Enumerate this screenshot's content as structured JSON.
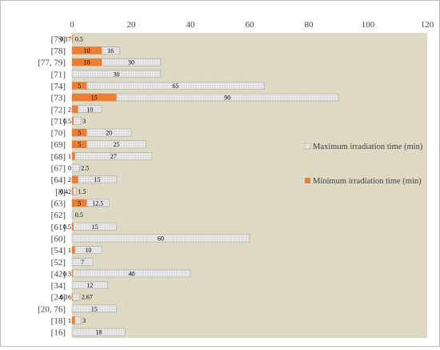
{
  "chart_data": {
    "type": "bar",
    "orientation": "horizontal",
    "stacked": "overlay",
    "categories": [
      "[79]",
      "[78]",
      "[77, 79]",
      "[71]",
      "[74]",
      "[73]",
      "[72]",
      "[71]",
      "[70]",
      "[69]",
      "[68]",
      "[67]",
      "[64]",
      "[8]",
      "[63]",
      "[62]",
      "[61]",
      "[60]",
      "[54]",
      "[52]",
      "[42]",
      "[34]",
      "[24]",
      "[20, 76]",
      "[18]",
      "[16]"
    ],
    "series": [
      {
        "name": "Maximum irradiation time (min)",
        "color": "#e7e6e6",
        "pattern": "dotted",
        "values": [
          0.5,
          16,
          30,
          30,
          65,
          90,
          10,
          3,
          20,
          25,
          27,
          2.5,
          15,
          1.5,
          12.5,
          0.5,
          15,
          60,
          10,
          7,
          40,
          12,
          2.67,
          15,
          3,
          18
        ],
        "labels": [
          "0.5",
          "16",
          "30",
          "30",
          "65",
          "90",
          "10",
          "3",
          "20",
          "25",
          "27",
          "2.5",
          "15",
          "1.5",
          "12.5",
          "0.5",
          "15",
          "60",
          "10",
          "7",
          "40",
          "12",
          "2.67",
          "15",
          "3",
          "18"
        ]
      },
      {
        "name": "Minimum irradiation time (min)",
        "color": "#ed7d31",
        "values": [
          0.17,
          10,
          10,
          null,
          5,
          15,
          2,
          0.5,
          5,
          5,
          1,
          0,
          2,
          0.42,
          5,
          0,
          0.5,
          null,
          1,
          null,
          0.3,
          null,
          0.16,
          null,
          1,
          null
        ],
        "labels": [
          "0.17",
          "10",
          "10",
          "",
          "5",
          "15",
          "2",
          "0.5",
          "5",
          "5",
          "1",
          "0",
          "2",
          "0.42",
          "5",
          "",
          "0.5",
          "",
          "1",
          "",
          "0.3",
          "",
          "0.16",
          "",
          "1",
          ""
        ]
      }
    ],
    "xlim": [
      0,
      120
    ],
    "xticks": [
      "0",
      "20",
      "40",
      "60",
      "80",
      "100",
      "120"
    ],
    "xlabel": "",
    "ylabel": "",
    "title": "",
    "legend_position": "right",
    "plot_background": "#ddd9c3",
    "grid": false
  }
}
